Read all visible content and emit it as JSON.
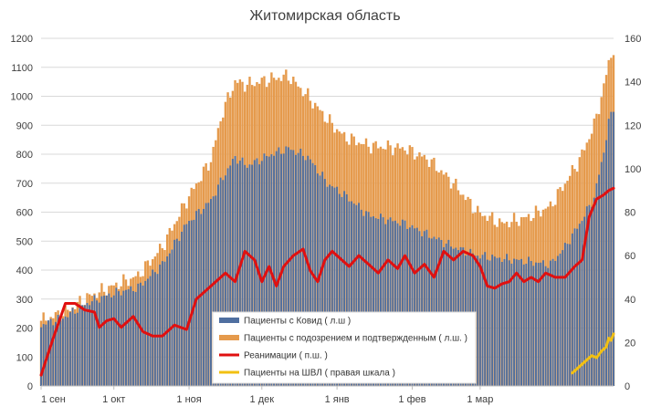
{
  "chart_data": {
    "type": "bar",
    "title": "Житомирская область",
    "x_tick_labels": [
      "1 сен",
      "1 окт",
      "1 ноя",
      "1 дек",
      "1 янв",
      "1 фев",
      "1 мар"
    ],
    "y_left": {
      "min": 0,
      "max": 1200,
      "step": 100,
      "tick_labels": [
        "0",
        "100",
        "200",
        "300",
        "400",
        "500",
        "600",
        "700",
        "800",
        "900",
        "1000",
        "1100",
        "1200"
      ]
    },
    "y_right": {
      "min": 0,
      "max": 160,
      "step": 20,
      "tick_labels": [
        "0",
        "20",
        "40",
        "60",
        "80",
        "100",
        "120",
        "140",
        "160"
      ]
    },
    "grid": true,
    "legend_position": "bottom-center",
    "series": [
      {
        "name": "Пациенты с Ковид  ( л.ш )",
        "kind": "bar",
        "axis": "left",
        "color": "#4f6fa0",
        "anchors": [
          [
            0,
            210
          ],
          [
            10,
            240
          ],
          [
            20,
            290
          ],
          [
            30,
            320
          ],
          [
            40,
            340
          ],
          [
            50,
            420
          ],
          [
            60,
            560
          ],
          [
            70,
            640
          ],
          [
            75,
            720
          ],
          [
            80,
            790
          ],
          [
            85,
            760
          ],
          [
            95,
            800
          ],
          [
            102,
            820
          ],
          [
            110,
            790
          ],
          [
            118,
            700
          ],
          [
            125,
            660
          ],
          [
            135,
            590
          ],
          [
            150,
            560
          ],
          [
            160,
            520
          ],
          [
            170,
            480
          ],
          [
            180,
            450
          ],
          [
            190,
            440
          ],
          [
            200,
            430
          ],
          [
            210,
            420
          ],
          [
            216,
            480
          ],
          [
            222,
            560
          ],
          [
            228,
            650
          ],
          [
            232,
            810
          ],
          [
            234,
            910
          ],
          [
            236,
            960
          ]
        ]
      },
      {
        "name": "Пациенты с подозрением и подтвержденным ( л.ш. )",
        "kind": "bar",
        "axis": "left",
        "color": "#e59a4c",
        "anchors": [
          [
            0,
            225
          ],
          [
            10,
            255
          ],
          [
            20,
            310
          ],
          [
            30,
            345
          ],
          [
            40,
            380
          ],
          [
            50,
            480
          ],
          [
            60,
            640
          ],
          [
            70,
            780
          ],
          [
            75,
            950
          ],
          [
            80,
            1050
          ],
          [
            85,
            1040
          ],
          [
            95,
            1060
          ],
          [
            102,
            1070
          ],
          [
            110,
            1000
          ],
          [
            118,
            920
          ],
          [
            125,
            860
          ],
          [
            135,
            830
          ],
          [
            150,
            820
          ],
          [
            160,
            780
          ],
          [
            170,
            700
          ],
          [
            180,
            600
          ],
          [
            190,
            560
          ],
          [
            200,
            580
          ],
          [
            210,
            620
          ],
          [
            216,
            700
          ],
          [
            222,
            780
          ],
          [
            228,
            900
          ],
          [
            232,
            1030
          ],
          [
            234,
            1120
          ],
          [
            236,
            1160
          ]
        ]
      },
      {
        "name": "Реанимации ( п.ш. )",
        "kind": "line",
        "axis": "right",
        "color": "#e01010",
        "anchors": [
          [
            0,
            5
          ],
          [
            5,
            22
          ],
          [
            10,
            38
          ],
          [
            14,
            38
          ],
          [
            18,
            35
          ],
          [
            22,
            34
          ],
          [
            24,
            27
          ],
          [
            27,
            30
          ],
          [
            30,
            31
          ],
          [
            33,
            27
          ],
          [
            38,
            32
          ],
          [
            42,
            25
          ],
          [
            46,
            23
          ],
          [
            50,
            23
          ],
          [
            55,
            28
          ],
          [
            60,
            26
          ],
          [
            64,
            40
          ],
          [
            68,
            44
          ],
          [
            72,
            48
          ],
          [
            76,
            52
          ],
          [
            80,
            48
          ],
          [
            84,
            62
          ],
          [
            88,
            58
          ],
          [
            91,
            48
          ],
          [
            94,
            55
          ],
          [
            97,
            46
          ],
          [
            100,
            55
          ],
          [
            104,
            60
          ],
          [
            108,
            63
          ],
          [
            111,
            53
          ],
          [
            114,
            48
          ],
          [
            117,
            58
          ],
          [
            120,
            62
          ],
          [
            124,
            58
          ],
          [
            127,
            55
          ],
          [
            131,
            60
          ],
          [
            135,
            56
          ],
          [
            139,
            52
          ],
          [
            143,
            58
          ],
          [
            147,
            54
          ],
          [
            150,
            60
          ],
          [
            154,
            52
          ],
          [
            158,
            56
          ],
          [
            162,
            50
          ],
          [
            166,
            62
          ],
          [
            170,
            58
          ],
          [
            174,
            62
          ],
          [
            178,
            60
          ],
          [
            181,
            55
          ],
          [
            184,
            46
          ],
          [
            187,
            45
          ],
          [
            190,
            47
          ],
          [
            193,
            48
          ],
          [
            196,
            52
          ],
          [
            199,
            48
          ],
          [
            202,
            50
          ],
          [
            205,
            48
          ],
          [
            208,
            52
          ],
          [
            212,
            50
          ],
          [
            216,
            50
          ],
          [
            220,
            55
          ],
          [
            223,
            58
          ],
          [
            226,
            78
          ],
          [
            229,
            86
          ],
          [
            232,
            88
          ],
          [
            234,
            90
          ],
          [
            236,
            91
          ]
        ]
      },
      {
        "name": "Пациенты на ШВЛ  ( правая шкала )",
        "kind": "line",
        "axis": "right",
        "color": "#f2c012",
        "anchors": [
          [
            219,
            6
          ],
          [
            222,
            9
          ],
          [
            225,
            12
          ],
          [
            227,
            14
          ],
          [
            229,
            13
          ],
          [
            231,
            16
          ],
          [
            232,
            17
          ],
          [
            233,
            18
          ],
          [
            234,
            22
          ],
          [
            235,
            21
          ],
          [
            236,
            24
          ]
        ]
      }
    ]
  }
}
